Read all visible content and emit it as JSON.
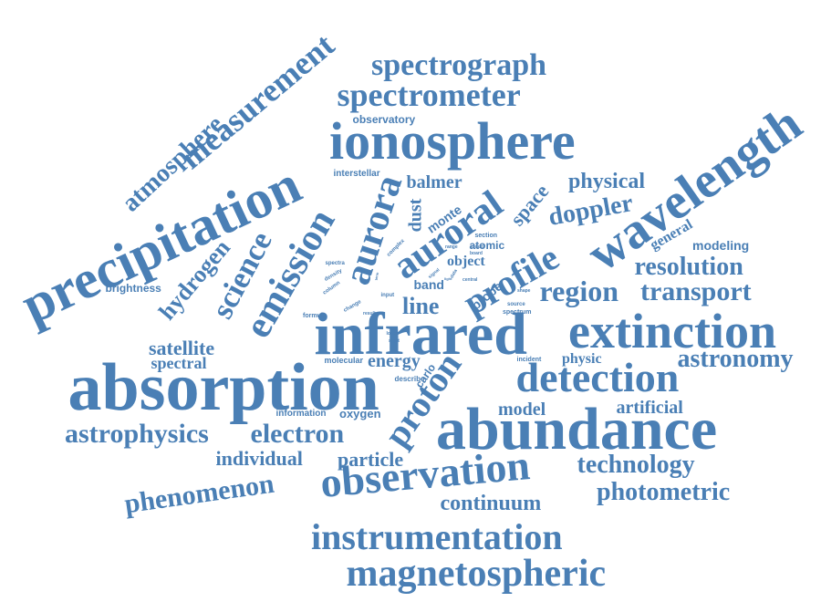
{
  "color": "#4a7fb5",
  "words": {
    "absorption": "absorption",
    "abundance": "abundance",
    "infrared": "infrared",
    "extinction": "extinction",
    "ionosphere": "ionosphere",
    "precipitation": "precipitation",
    "wavelength": "wavelength",
    "detection": "detection",
    "observation": "observation",
    "instrumentation": "instrumentation",
    "magnetospheric": "magnetospheric",
    "spectrometer": "spectrometer",
    "spectrograph": "spectrograph",
    "measurement": "measurement",
    "atmosphere": "atmosphere",
    "emission": "emission",
    "aurora": "aurora",
    "auroral": "auroral",
    "profile": "profile",
    "proton": "proton",
    "science": "science",
    "hydrogen": "hydrogen",
    "astrophysics": "astrophysics",
    "electron": "electron",
    "region": "region",
    "transport": "transport",
    "resolution": "resolution",
    "astronomy": "astronomy",
    "phenomenon": "phenomenon",
    "technology": "technology",
    "photometric": "photometric",
    "continuum": "continuum",
    "individual": "individual",
    "particle": "particle",
    "doppler": "doppler",
    "physical": "physical",
    "space": "space",
    "satellite": "satellite",
    "spectral": "spectral",
    "energy": "energy",
    "line": "line",
    "balmer": "balmer",
    "dust": "dust",
    "model": "model",
    "artificial": "artificial",
    "physic": "physic",
    "general": "general",
    "modeling": "modeling",
    "object": "object",
    "band": "band",
    "monte": "monte",
    "atomic": "atomic",
    "probe": "probe",
    "carlo": "carlo",
    "oxygen": "oxygen",
    "information": "information",
    "molecular": "molecular",
    "brightness": "brightness",
    "observatory": "observatory",
    "interstellar": "interstellar",
    "section": "section",
    "incident": "incident",
    "describe": "describe",
    "formula": "formula",
    "spectrum": "spectrum",
    "source": "source",
    "spectra": "spectra",
    "density": "density",
    "column": "column",
    "input": "input",
    "complex": "complex",
    "signal": "signal",
    "range": "range",
    "change": "change",
    "result": "result",
    "lower": "lower",
    "sight": "sight",
    "central": "central",
    "cloud": "cloud",
    "board": "board",
    "shape": "shape",
    "data": "data",
    "term": "term",
    "light": "light"
  }
}
